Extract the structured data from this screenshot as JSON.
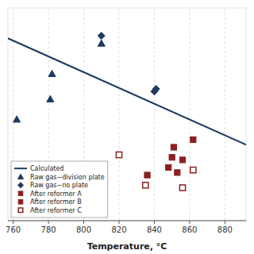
{
  "chart_data": {
    "type": "scatter",
    "x_label": "Temperature, °C",
    "xlim": [
      757,
      892
    ],
    "ylim": [
      0.18,
      1.02
    ],
    "xticks": [
      760,
      780,
      800,
      820,
      840,
      860,
      880
    ],
    "grid": true,
    "legend": "lower left",
    "tick_labels": "x",
    "series": [
      {
        "name": "Calculated",
        "type": "line",
        "color": "#1e3a5f",
        "line_style": "solid",
        "x": [
          757,
          892
        ],
        "values": [
          0.9,
          0.48
        ]
      },
      {
        "name": "Raw gas−division plate",
        "type": "scatter",
        "color": "#1e3a5f",
        "marker": "triangle",
        "x": [
          762,
          781,
          782,
          810
        ],
        "values": [
          0.58,
          0.66,
          0.76,
          0.88
        ]
      },
      {
        "name": "Raw gas−no plate",
        "type": "scatter",
        "color": "#1e3a5f",
        "marker": "diamond",
        "x": [
          810,
          840,
          841
        ],
        "values": [
          0.91,
          0.69,
          0.7
        ]
      },
      {
        "name": "After reformer A",
        "type": "scatter",
        "color": "#8b2020",
        "marker": "square",
        "x": [
          836,
          848,
          850,
          851,
          853,
          856,
          862
        ],
        "values": [
          0.36,
          0.39,
          0.43,
          0.47,
          0.37,
          0.42,
          0.5
        ]
      },
      {
        "name": "After reformer B",
        "type": "scatter",
        "color": "#8b2020",
        "marker": "square",
        "x": [],
        "values": []
      },
      {
        "name": "After reformer C",
        "type": "scatter",
        "color": "#8b2020",
        "marker": "open-square",
        "x": [
          820,
          835,
          856,
          862
        ],
        "values": [
          0.44,
          0.32,
          0.31,
          0.38
        ]
      }
    ]
  }
}
